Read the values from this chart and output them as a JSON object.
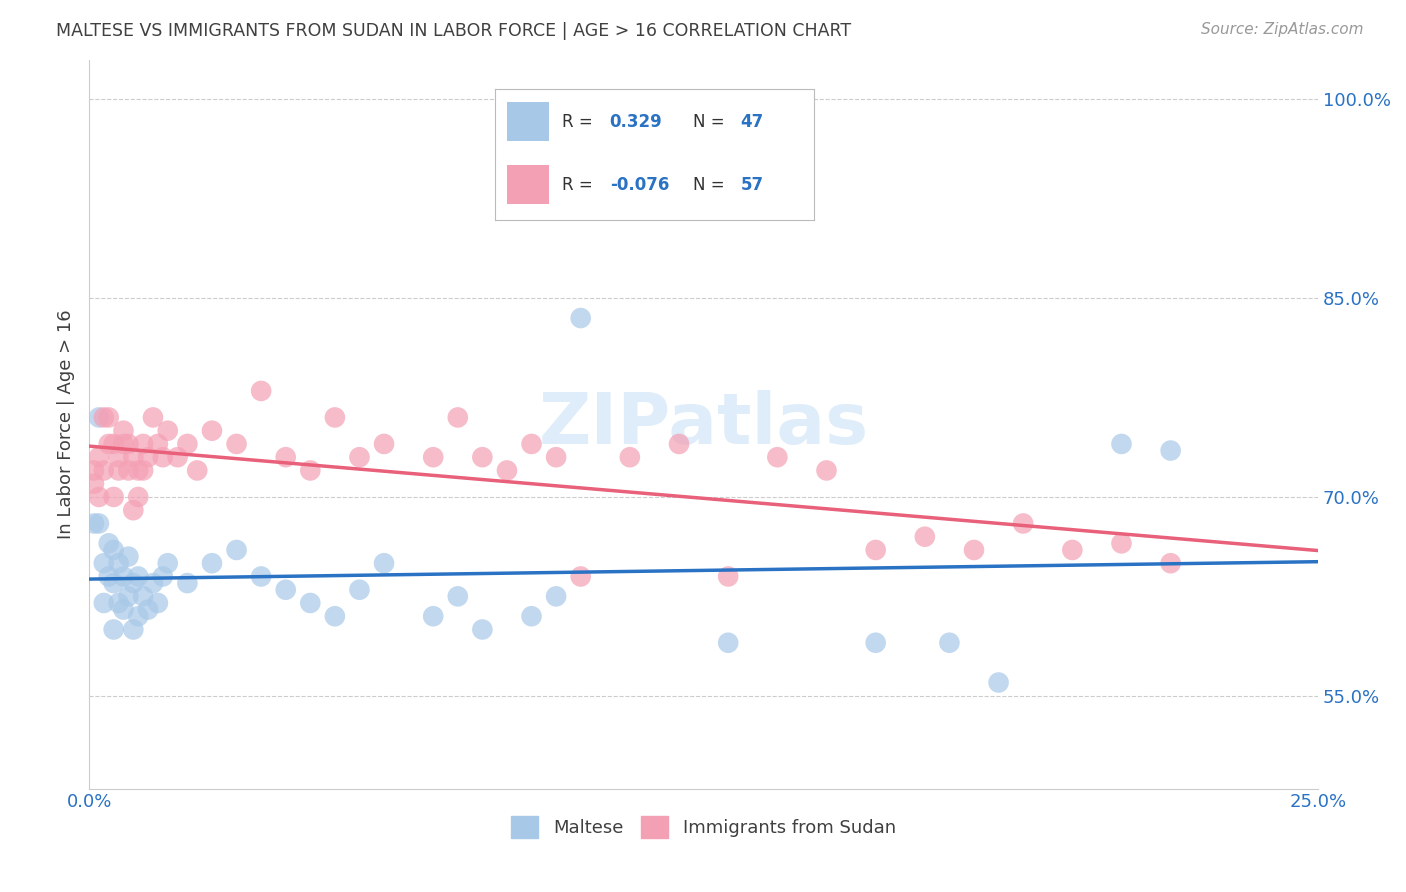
{
  "title": "MALTESE VS IMMIGRANTS FROM SUDAN IN LABOR FORCE | AGE > 16 CORRELATION CHART",
  "source": "Source: ZipAtlas.com",
  "ylabel": "In Labor Force | Age > 16",
  "watermark": "ZIPatlas",
  "blue_R": 0.329,
  "blue_N": 47,
  "pink_R": -0.076,
  "pink_N": 57,
  "blue_color": "#a8c8e8",
  "pink_color": "#f4a0b4",
  "blue_line_color": "#2a72c3",
  "pink_line_color": "#e8607a",
  "legend_blue_label": "Maltese",
  "legend_pink_label": "Immigrants from Sudan",
  "x_min": 0.0,
  "x_max": 0.25,
  "y_min": 0.48,
  "y_max": 1.03,
  "y_ticks": [
    0.55,
    0.7,
    0.85,
    1.0
  ],
  "y_tick_labels": [
    "55.0%",
    "70.0%",
    "85.0%",
    "100.0%"
  ],
  "blue_x": [
    0.001,
    0.002,
    0.002,
    0.003,
    0.003,
    0.004,
    0.004,
    0.005,
    0.005,
    0.005,
    0.006,
    0.006,
    0.007,
    0.007,
    0.008,
    0.008,
    0.009,
    0.009,
    0.01,
    0.01,
    0.011,
    0.012,
    0.013,
    0.014,
    0.015,
    0.016,
    0.02,
    0.025,
    0.03,
    0.035,
    0.04,
    0.045,
    0.05,
    0.055,
    0.06,
    0.07,
    0.075,
    0.08,
    0.09,
    0.095,
    0.1,
    0.13,
    0.16,
    0.175,
    0.185,
    0.21,
    0.22
  ],
  "blue_y": [
    0.68,
    0.76,
    0.68,
    0.65,
    0.62,
    0.665,
    0.64,
    0.66,
    0.635,
    0.6,
    0.65,
    0.62,
    0.64,
    0.615,
    0.655,
    0.625,
    0.635,
    0.6,
    0.64,
    0.61,
    0.625,
    0.615,
    0.635,
    0.62,
    0.64,
    0.65,
    0.635,
    0.65,
    0.66,
    0.64,
    0.63,
    0.62,
    0.61,
    0.63,
    0.65,
    0.61,
    0.625,
    0.6,
    0.61,
    0.625,
    0.835,
    0.59,
    0.59,
    0.59,
    0.56,
    0.74,
    0.735
  ],
  "pink_x": [
    0.001,
    0.001,
    0.002,
    0.002,
    0.003,
    0.003,
    0.004,
    0.004,
    0.005,
    0.005,
    0.006,
    0.006,
    0.007,
    0.007,
    0.008,
    0.008,
    0.009,
    0.009,
    0.01,
    0.01,
    0.011,
    0.011,
    0.012,
    0.013,
    0.014,
    0.015,
    0.016,
    0.018,
    0.02,
    0.022,
    0.025,
    0.03,
    0.035,
    0.04,
    0.045,
    0.05,
    0.055,
    0.06,
    0.07,
    0.075,
    0.08,
    0.085,
    0.09,
    0.095,
    0.1,
    0.11,
    0.12,
    0.13,
    0.14,
    0.15,
    0.16,
    0.17,
    0.18,
    0.19,
    0.2,
    0.21,
    0.22
  ],
  "pink_y": [
    0.72,
    0.71,
    0.73,
    0.7,
    0.76,
    0.72,
    0.76,
    0.74,
    0.74,
    0.7,
    0.73,
    0.72,
    0.75,
    0.74,
    0.74,
    0.72,
    0.73,
    0.69,
    0.72,
    0.7,
    0.74,
    0.72,
    0.73,
    0.76,
    0.74,
    0.73,
    0.75,
    0.73,
    0.74,
    0.72,
    0.75,
    0.74,
    0.78,
    0.73,
    0.72,
    0.76,
    0.73,
    0.74,
    0.73,
    0.76,
    0.73,
    0.72,
    0.74,
    0.73,
    0.64,
    0.73,
    0.74,
    0.64,
    0.73,
    0.72,
    0.66,
    0.67,
    0.66,
    0.68,
    0.66,
    0.665,
    0.65
  ],
  "grid_color": "#cccccc",
  "title_color": "#404040",
  "tick_color": "#2a72c3",
  "label_color": "#404040"
}
